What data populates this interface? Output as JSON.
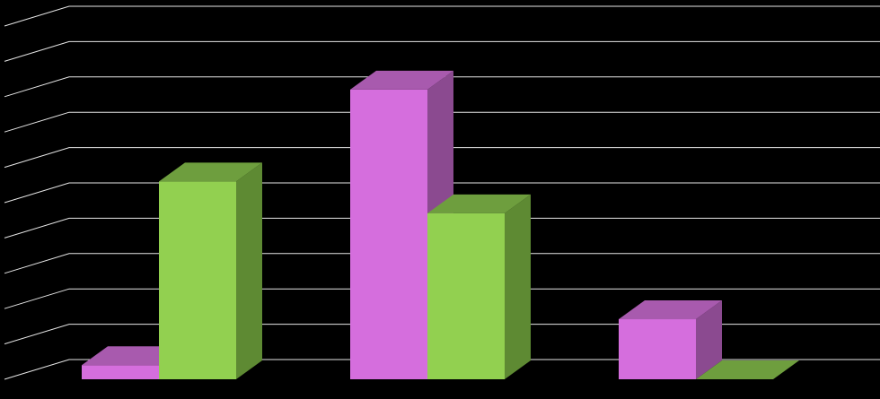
{
  "chart_data": {
    "type": "bar",
    "style": "3d-clustered-column",
    "categories": [
      "",
      "",
      ""
    ],
    "series": [
      {
        "values": [
          0.4,
          8.2,
          1.7
        ],
        "color": "#D56EDD",
        "side_color": "#8B4A90",
        "top_color": "#A85AAE"
      },
      {
        "values": [
          5.6,
          4.7,
          0.0
        ],
        "color": "#92D050",
        "side_color": "#5E8A33",
        "top_color": "#6E9E3E"
      }
    ],
    "ylim": [
      0,
      10
    ],
    "grid": true,
    "grid_color": "#FFFFFF",
    "background": "#000000",
    "legend": "none",
    "title": "",
    "xlabel": "",
    "ylabel": ""
  }
}
